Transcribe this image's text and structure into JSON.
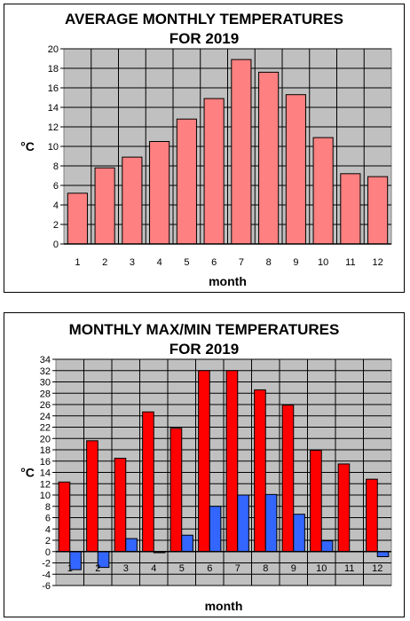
{
  "chart_data": [
    {
      "type": "bar",
      "title": [
        "AVERAGE MONTHLY TEMPERATURES",
        "FOR 2019"
      ],
      "xlabel": "month",
      "ylabel": "°C",
      "categories": [
        "1",
        "2",
        "3",
        "4",
        "5",
        "6",
        "7",
        "8",
        "9",
        "10",
        "11",
        "12"
      ],
      "series": [
        {
          "values": [
            5.2,
            7.8,
            8.9,
            10.5,
            12.8,
            14.9,
            18.9,
            17.6,
            15.3,
            10.9,
            7.2,
            6.9
          ],
          "color": "#ff8080"
        }
      ],
      "ylim": [
        0,
        20
      ],
      "yticks": [
        0,
        2,
        4,
        6,
        8,
        10,
        12,
        14,
        16,
        18,
        20
      ],
      "grid": true,
      "plot_bg": "#c0c0c0"
    },
    {
      "type": "bar",
      "title": [
        "MONTHLY MAX/MIN TEMPERATURES",
        "FOR 2019"
      ],
      "xlabel": "month",
      "ylabel": "°C",
      "categories": [
        "1",
        "2",
        "3",
        "4",
        "5",
        "6",
        "7",
        "8",
        "9",
        "10",
        "11",
        "12"
      ],
      "series": [
        {
          "values": [
            12.3,
            19.6,
            16.5,
            24.7,
            21.8,
            32.0,
            32.0,
            28.6,
            25.9,
            17.9,
            15.5,
            12.8
          ],
          "color": "#ff0000"
        },
        {
          "values": [
            -3.2,
            -2.8,
            2.3,
            -0.2,
            2.9,
            8.0,
            10.0,
            10.1,
            6.6,
            1.9,
            0,
            -0.9
          ],
          "color": "#3366ff"
        }
      ],
      "ylim": [
        -6,
        34
      ],
      "yticks": [
        -6,
        -4,
        -2,
        0,
        2,
        4,
        6,
        8,
        10,
        12,
        14,
        16,
        18,
        20,
        22,
        24,
        26,
        28,
        30,
        32,
        34
      ],
      "grid": true,
      "plot_bg": "#c0c0c0"
    }
  ]
}
